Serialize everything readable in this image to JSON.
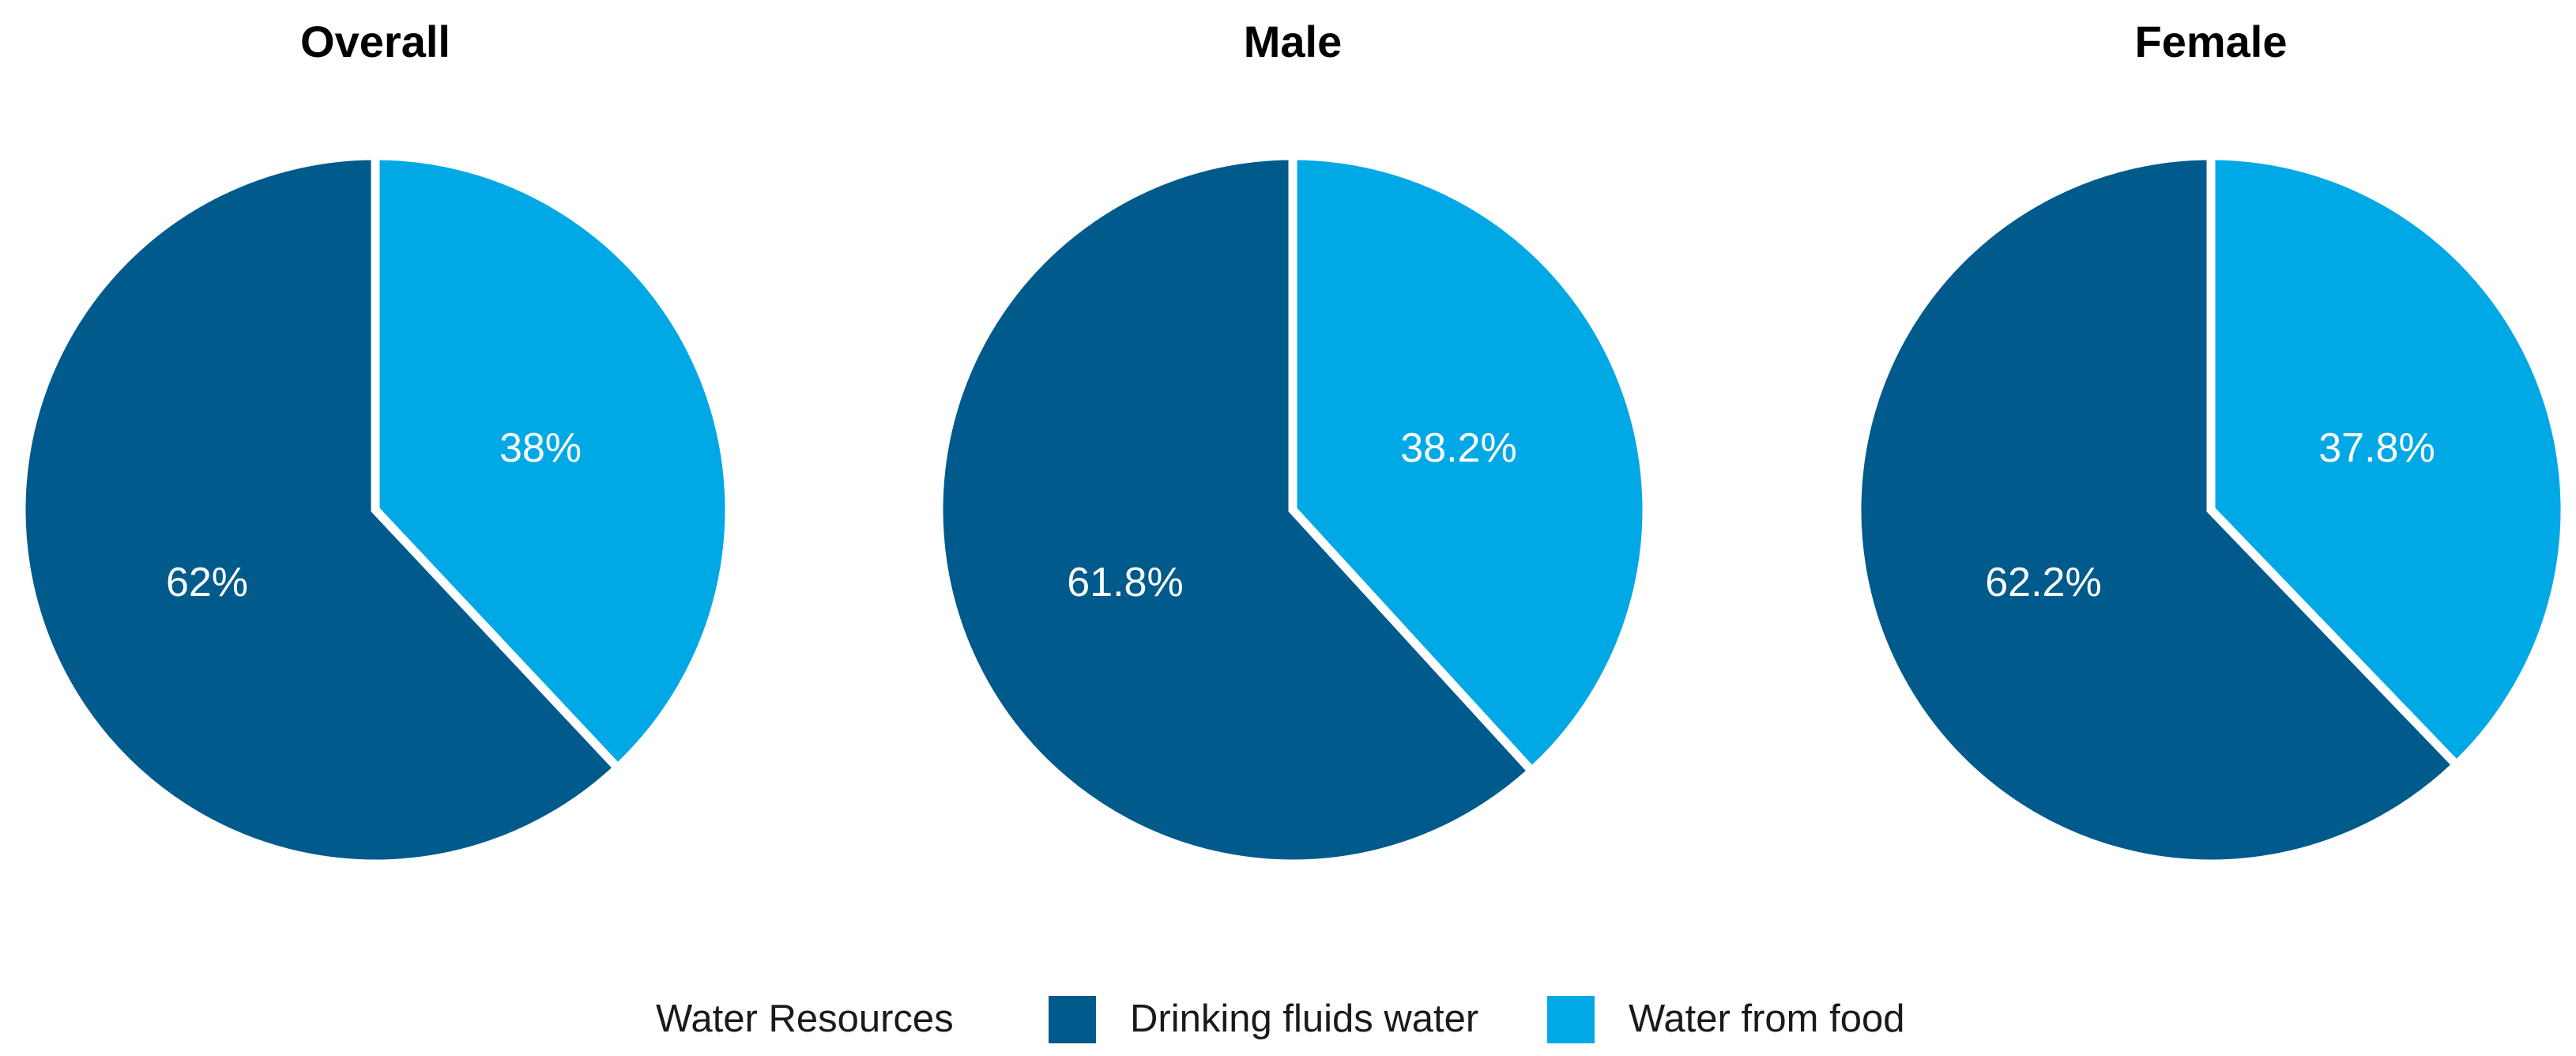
{
  "chart_data": [
    {
      "type": "pie",
      "title": "Overall",
      "categories": [
        "Drinking fluids water",
        "Water from food"
      ],
      "values": [
        62,
        38
      ],
      "labels": [
        "62%",
        "38%"
      ]
    },
    {
      "type": "pie",
      "title": "Male",
      "categories": [
        "Drinking fluids water",
        "Water from food"
      ],
      "values": [
        61.8,
        38.2
      ],
      "labels": [
        "61.8%",
        "38.2%"
      ]
    },
    {
      "type": "pie",
      "title": "Female",
      "categories": [
        "Drinking fluids water",
        "Water from food"
      ],
      "values": [
        62.2,
        37.8
      ],
      "labels": [
        "62.2%",
        "37.8%"
      ]
    }
  ],
  "legend": {
    "title": "Water Resources",
    "placement": "bottom",
    "items": [
      {
        "label": "Drinking fluids water",
        "color": "#005A8C"
      },
      {
        "label": "Water from food",
        "color": "#00A9E6"
      }
    ]
  }
}
